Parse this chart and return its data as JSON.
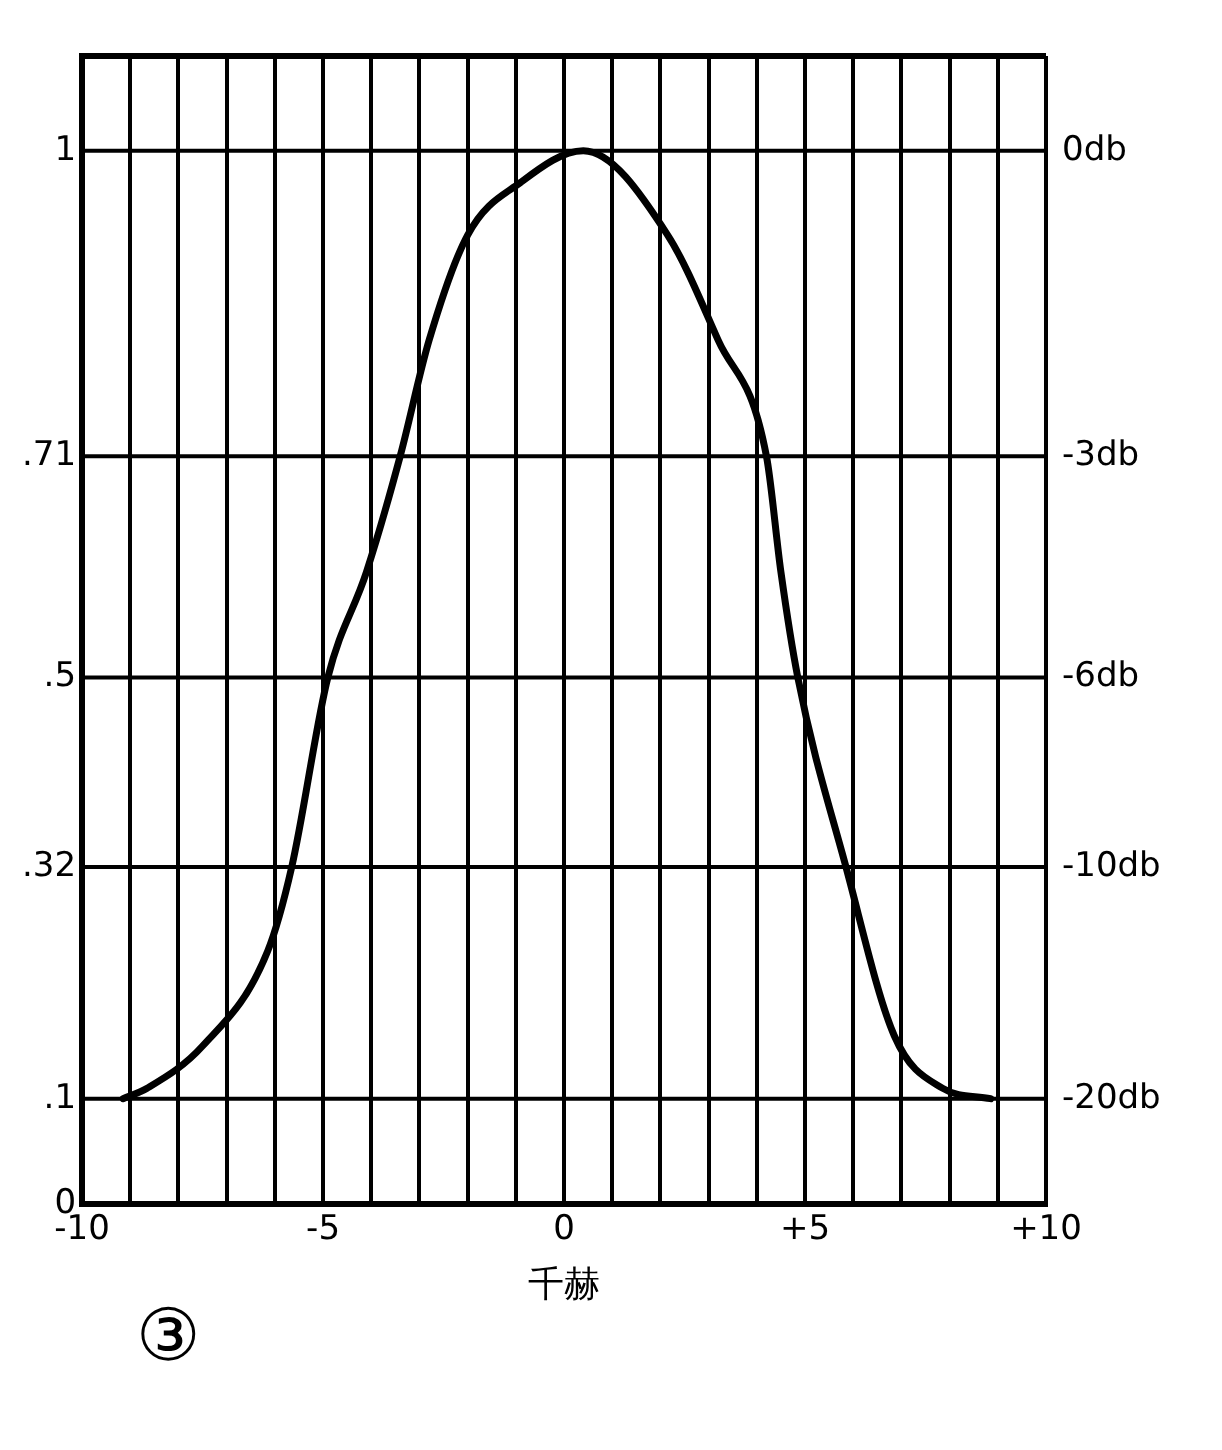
{
  "chart_data": {
    "type": "line",
    "xlabel": "千赫",
    "annotations": [
      "③"
    ],
    "x": [
      -9.15,
      -8.65,
      -7.5,
      -6.15,
      -5.65,
      -4.9,
      -4.1,
      -3.4,
      -2.8,
      -2.0,
      -0.9,
      0.4,
      2.15,
      3.2,
      4.2,
      4.5,
      4.85,
      5.85,
      6.85,
      7.85,
      8.85
    ],
    "series": [
      {
        "color": "#000000",
        "values": [
          0.1,
          0.11,
          0.15,
          0.24,
          0.32,
          0.5,
          0.6,
          0.71,
          0.82,
          0.92,
          0.97,
          1.0,
          0.92,
          0.82,
          0.71,
          0.6,
          0.5,
          0.32,
          0.16,
          0.11,
          0.1
        ]
      }
    ],
    "xlim": [
      -10,
      10
    ],
    "xticks": [
      {
        "value": -10,
        "label": "-10"
      },
      {
        "value": -9,
        "label": null
      },
      {
        "value": -8,
        "label": null
      },
      {
        "value": -7,
        "label": null
      },
      {
        "value": -6,
        "label": null
      },
      {
        "value": -5,
        "label": "-5"
      },
      {
        "value": -4,
        "label": null
      },
      {
        "value": -3,
        "label": null
      },
      {
        "value": -2,
        "label": null
      },
      {
        "value": -1,
        "label": null
      },
      0,
      {
        "value": 1,
        "label": null
      },
      {
        "value": 2,
        "label": null
      },
      {
        "value": 3,
        "label": null
      },
      {
        "value": 4,
        "label": null
      },
      {
        "value": 5,
        "label": "+5"
      },
      {
        "value": 6,
        "label": null
      },
      {
        "value": 7,
        "label": null
      },
      {
        "value": 8,
        "label": null
      },
      {
        "value": 9,
        "label": null
      },
      {
        "value": 10,
        "label": "+10"
      }
    ],
    "ylim": [
      0,
      1.09
    ],
    "yticks": [
      0,
      {
        "value": 0.1,
        "label": ".1"
      },
      {
        "value": 0.32,
        "label": ".32"
      },
      {
        "value": 0.5,
        "label": ".5"
      },
      {
        "value": 0.71,
        "label": ".71"
      },
      1
    ],
    "ref_lines": [
      {
        "axis": "y",
        "value": 1,
        "label": "0db"
      },
      {
        "axis": "y",
        "value": 0.71,
        "label": "-3db"
      },
      {
        "axis": "y",
        "value": 0.5,
        "label": "-6db"
      },
      {
        "axis": "y",
        "value": 0.32,
        "label": "-10db"
      },
      {
        "axis": "y",
        "value": 0.1,
        "label": "-20db"
      }
    ],
    "grid": "x",
    "legend": false,
    "marker": "none",
    "line_style": "solid"
  }
}
